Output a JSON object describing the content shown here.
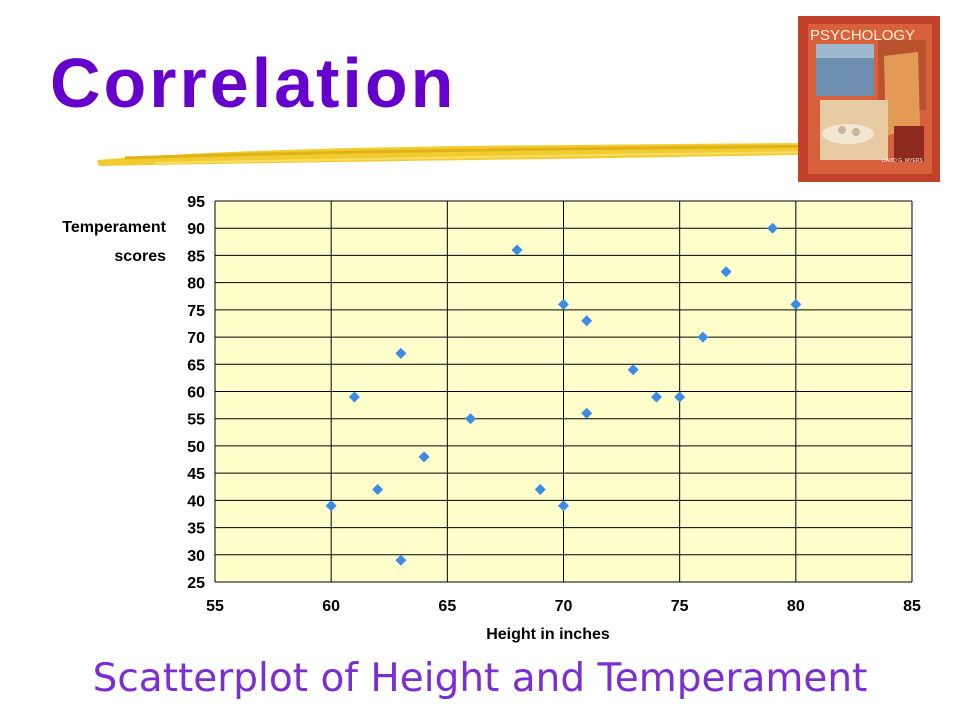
{
  "slide": {
    "title": "Correlation",
    "caption": "Scatterplot of Height and Temperament",
    "book_cover_text": "PSYCHOLOGY",
    "book_author": "DAVID G. MYERS"
  },
  "colors": {
    "title": "#6600cc",
    "caption": "#7b2fd1",
    "plot_background": "#ffffcc",
    "marker": "#3c8ce6",
    "brush": "#f2cc2e"
  },
  "chart_data": {
    "type": "scatter",
    "title": "",
    "xlabel": "Height in inches",
    "ylabel": "Temperament scores",
    "ylabel_lines": [
      "Temperament",
      "scores"
    ],
    "xlim": [
      55,
      85
    ],
    "ylim": [
      25,
      95
    ],
    "x_ticks": [
      55,
      60,
      65,
      70,
      75,
      80,
      85
    ],
    "y_ticks": [
      25,
      30,
      35,
      40,
      45,
      50,
      55,
      60,
      65,
      70,
      75,
      80,
      85,
      90,
      95
    ],
    "grid": true,
    "marker": "diamond",
    "points": [
      {
        "x": 60,
        "y": 39
      },
      {
        "x": 61,
        "y": 59
      },
      {
        "x": 62,
        "y": 42
      },
      {
        "x": 63,
        "y": 29
      },
      {
        "x": 63,
        "y": 67
      },
      {
        "x": 64,
        "y": 48
      },
      {
        "x": 66,
        "y": 55
      },
      {
        "x": 68,
        "y": 86
      },
      {
        "x": 69,
        "y": 42
      },
      {
        "x": 70,
        "y": 39
      },
      {
        "x": 70,
        "y": 76
      },
      {
        "x": 71,
        "y": 73
      },
      {
        "x": 71,
        "y": 56
      },
      {
        "x": 73,
        "y": 64
      },
      {
        "x": 74,
        "y": 59
      },
      {
        "x": 75,
        "y": 59
      },
      {
        "x": 76,
        "y": 70
      },
      {
        "x": 77,
        "y": 82
      },
      {
        "x": 79,
        "y": 90
      },
      {
        "x": 80,
        "y": 76
      }
    ]
  }
}
